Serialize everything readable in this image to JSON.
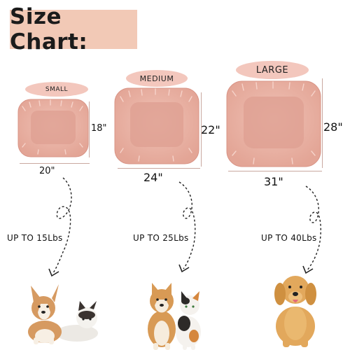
{
  "title": "Size Chart:",
  "sizes": [
    {
      "label": "SMALL",
      "width": "20\"",
      "depth": "18\"",
      "weight": "UP TO 15Lbs"
    },
    {
      "label": "MEDIUM",
      "width": "24\"",
      "depth": "22\"",
      "weight": "UP TO 25Lbs"
    },
    {
      "label": "LARGE",
      "width": "31\"",
      "depth": "28\"",
      "weight": "UP TO 40Lbs"
    }
  ],
  "colors": {
    "title_bg": "#f2c9b6",
    "pill_bg": "#f3c7bd",
    "bed_fur": "#e8b0a3",
    "bed_shadow": "#d99486"
  },
  "icons": {
    "arrow": "dashed-curved-arrow-icon",
    "small_pets": "corgi-and-cat-icon",
    "medium_pets": "shiba-and-calico-cat-icon",
    "large_pets": "golden-retriever-icon"
  }
}
